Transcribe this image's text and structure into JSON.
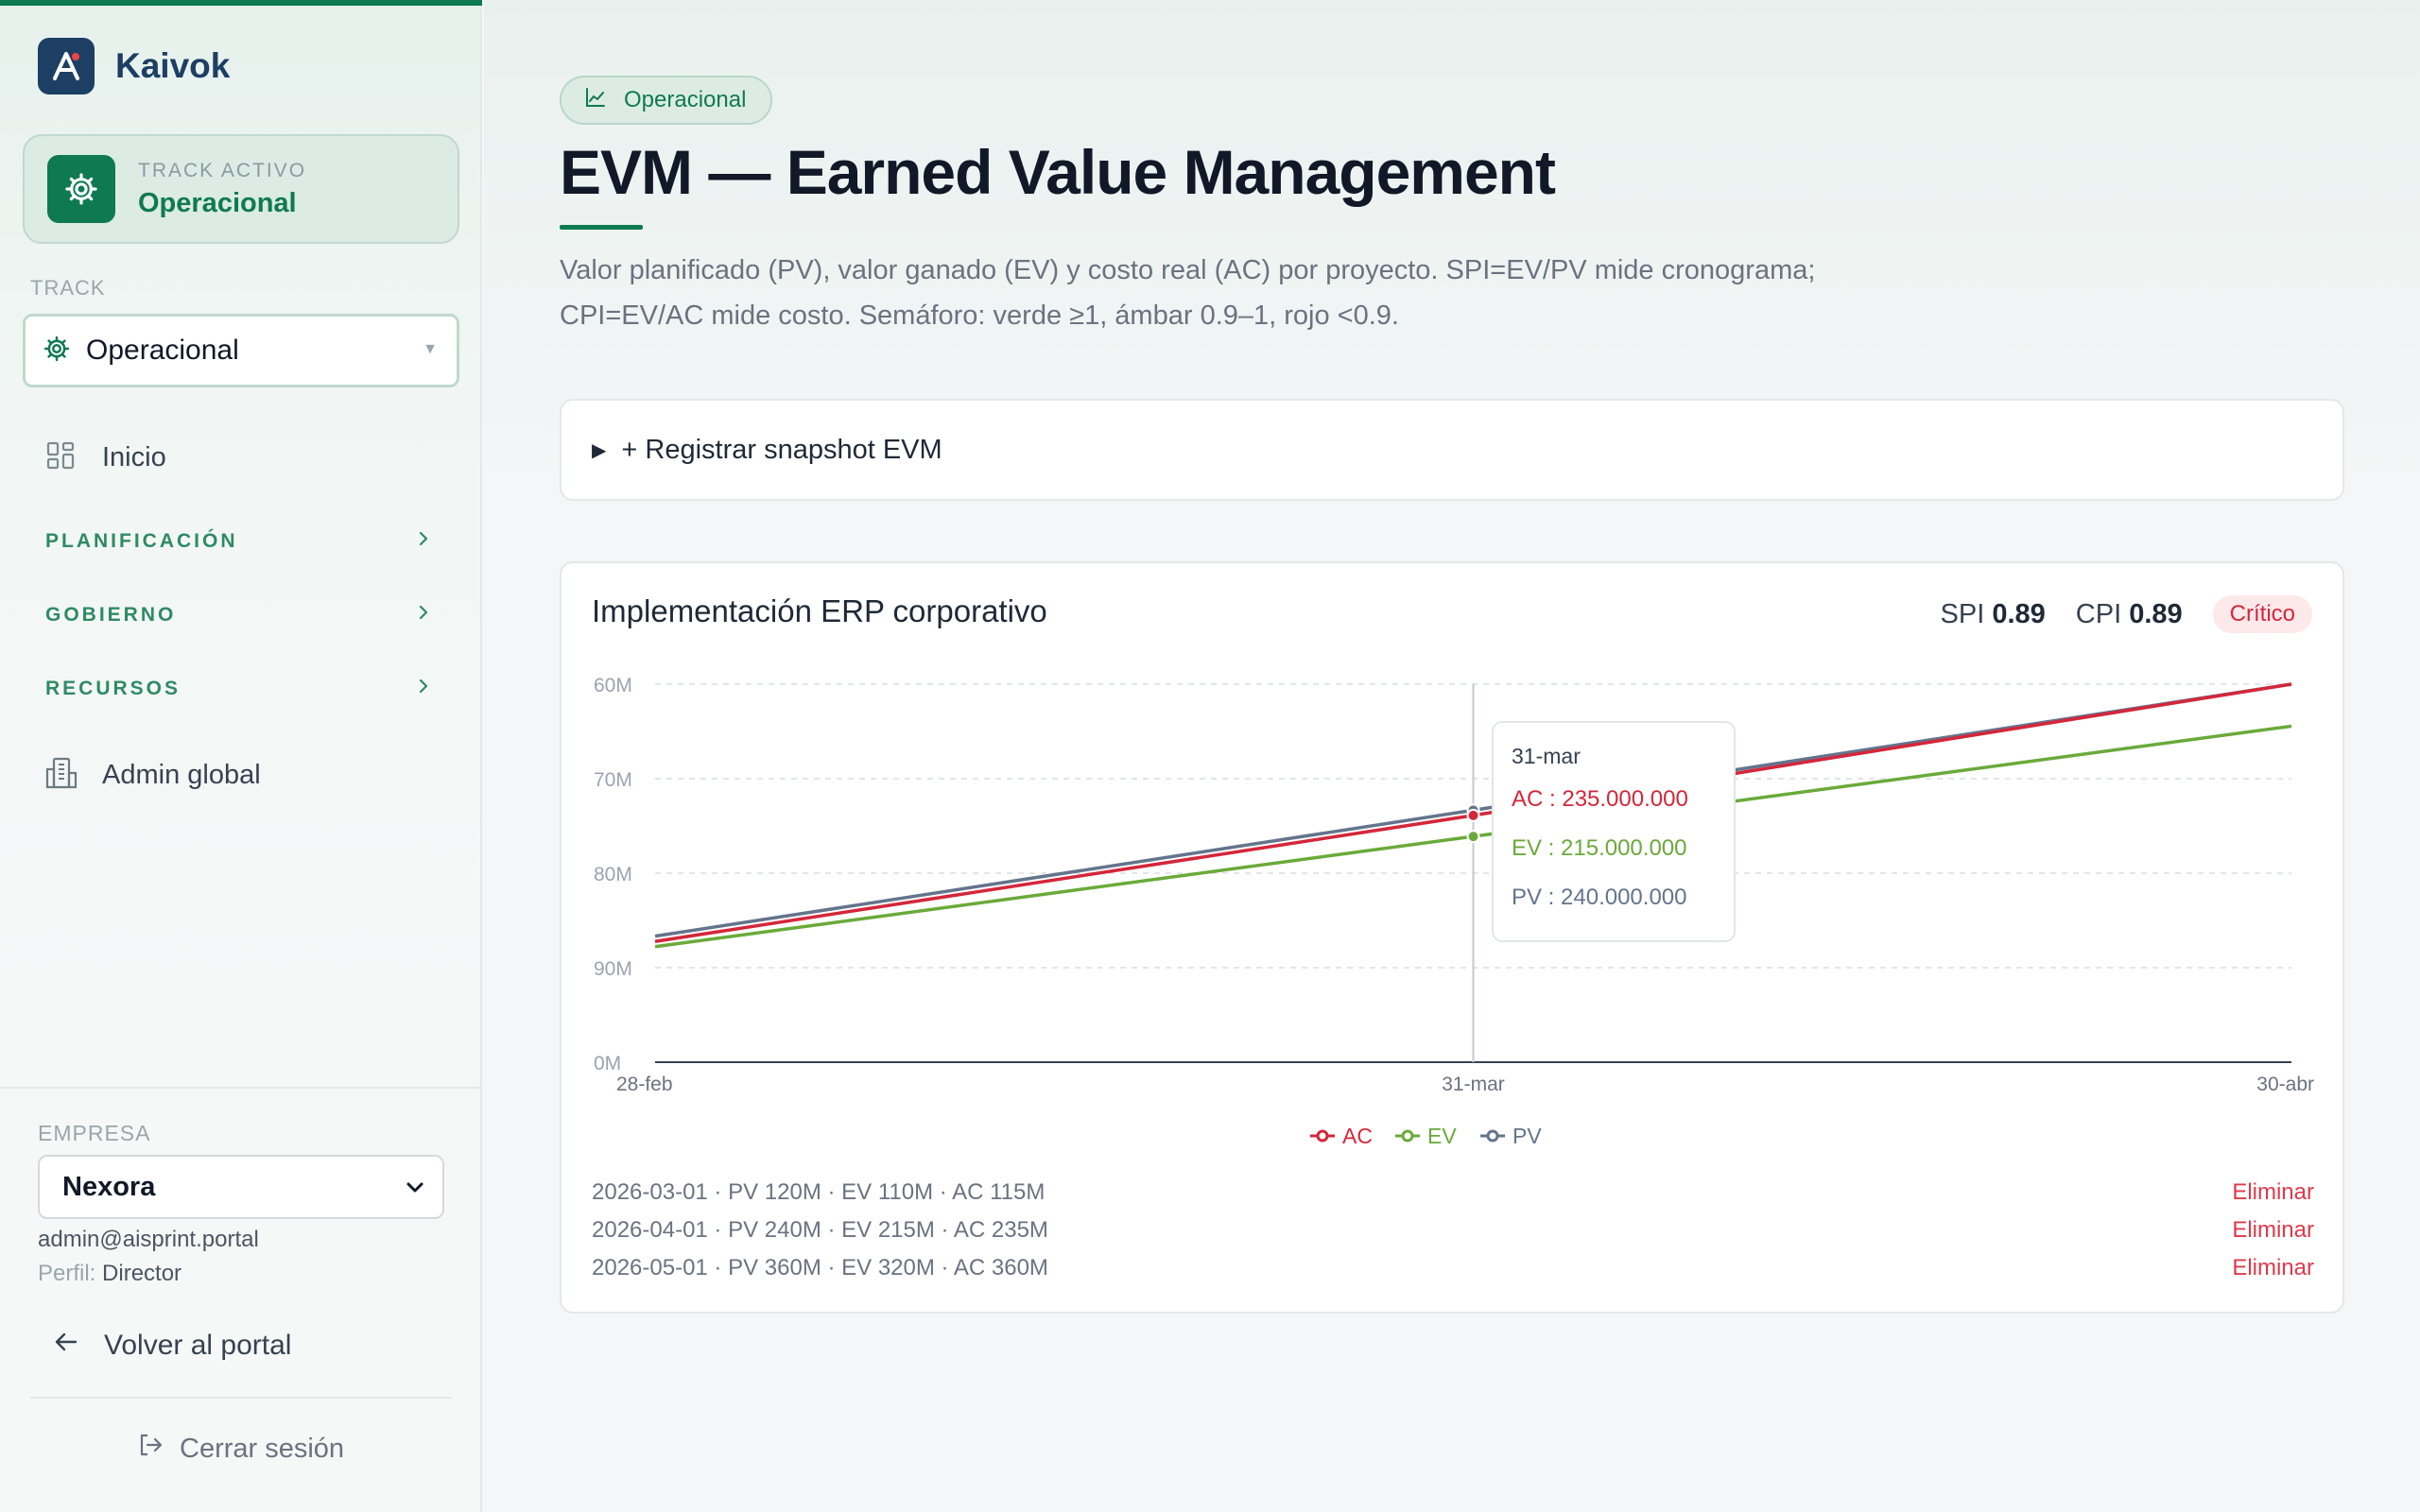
{
  "brand": {
    "name": "Kaivok"
  },
  "sidebar": {
    "track_card": {
      "label": "TRACK ACTIVO",
      "value": "Operacional"
    },
    "track_select": {
      "label": "TRACK",
      "value": "Operacional"
    },
    "home": {
      "label": "Inicio"
    },
    "sections": [
      {
        "label": "PLANIFICACIÓN"
      },
      {
        "label": "GOBIERNO"
      },
      {
        "label": "RECURSOS"
      }
    ],
    "admin": {
      "label": "Admin global"
    },
    "company": {
      "label": "EMPRESA",
      "value": "Nexora"
    },
    "user": {
      "email": "admin@aisprint.portal",
      "role_label": "Perfil:",
      "role": "Director"
    },
    "back": {
      "label": "Volver al portal"
    },
    "logout": {
      "label": "Cerrar sesión"
    }
  },
  "header": {
    "pill": "Operacional",
    "title": "EVM — Earned Value Management",
    "description": "Valor planificado (PV), valor ganado (EV) y costo real (AC) por proyecto. SPI=EV/PV mide cronograma; CPI=EV/AC mide costo. Semáforo: verde ≥1, ámbar 0.9–1, rojo <0.9."
  },
  "snapshot_form": {
    "label": "+ Registrar snapshot EVM"
  },
  "project": {
    "name": "Implementación ERP corporativo",
    "spi_label": "SPI",
    "spi": "0.89",
    "cpi_label": "CPI",
    "cpi": "0.89",
    "status": "Crítico"
  },
  "colors": {
    "accent": "#0f7a52",
    "ac": "#d5263a",
    "ev": "#6aaa3a",
    "pv": "#64748b",
    "critical": "#d5263a"
  },
  "tooltip": {
    "title": "31-mar",
    "rows": [
      {
        "key": "ac",
        "text": "AC : 235.000.000"
      },
      {
        "key": "ev",
        "text": "EV : 215.000.000"
      },
      {
        "key": "pv",
        "text": "PV : 240.000.000"
      }
    ]
  },
  "chart_data": {
    "type": "line",
    "categories": [
      "28-feb",
      "31-mar",
      "30-abr"
    ],
    "series": [
      {
        "name": "AC",
        "values": [
          115000000,
          235000000,
          360000000
        ]
      },
      {
        "name": "EV",
        "values": [
          110000000,
          215000000,
          320000000
        ]
      },
      {
        "name": "PV",
        "values": [
          120000000,
          240000000,
          360000000
        ]
      }
    ],
    "y_tick_labels": [
      "60M",
      "70M",
      "80M",
      "90M",
      "0M"
    ],
    "ylim": [
      0,
      360000000
    ],
    "grid": true,
    "legend": "bottom-center",
    "hovered_category": "31-mar"
  },
  "snapshots": [
    {
      "text": "2026-03-01 · PV 120M · EV 110M · AC 115M",
      "action": "Eliminar"
    },
    {
      "text": "2026-04-01 · PV 240M · EV 215M · AC 235M",
      "action": "Eliminar"
    },
    {
      "text": "2026-05-01 · PV 360M · EV 320M · AC 360M",
      "action": "Eliminar"
    }
  ]
}
